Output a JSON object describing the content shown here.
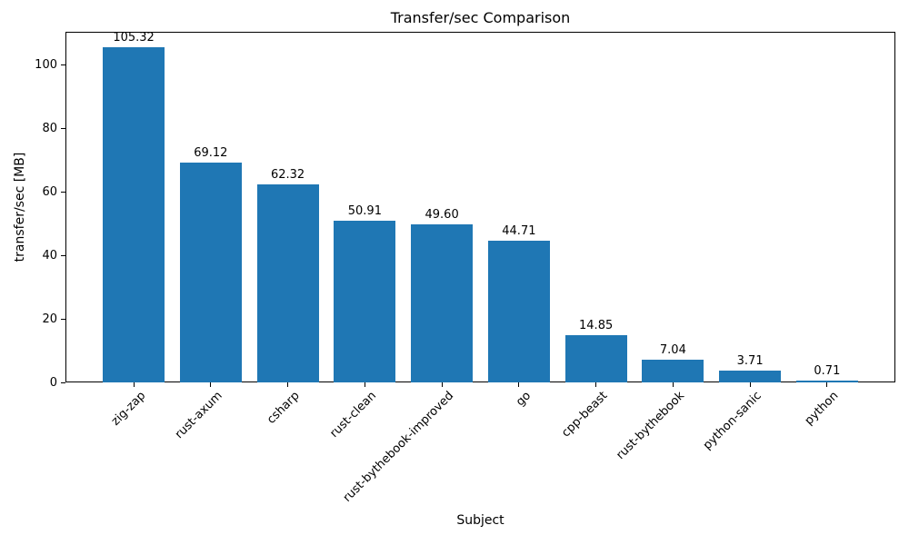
{
  "figure": {
    "background": "#ffffff"
  },
  "chart_data": {
    "type": "bar",
    "title": "Transfer/sec Comparison",
    "xlabel": "Subject",
    "ylabel": "transfer/sec [MB]",
    "categories": [
      "zig-zap",
      "rust-axum",
      "csharp",
      "rust-clean",
      "rust-bythebook-improved",
      "go",
      "cpp-beast",
      "rust-bythebook",
      "python-sanic",
      "python"
    ],
    "values": [
      105.32,
      69.12,
      62.32,
      50.91,
      49.6,
      44.71,
      14.85,
      7.04,
      3.71,
      0.71
    ],
    "bar_labels": [
      "105.32",
      "69.12",
      "62.32",
      "50.91",
      "49.60",
      "44.71",
      "14.85",
      "7.04",
      "3.71",
      "0.71"
    ],
    "yticks": [
      0,
      20,
      40,
      60,
      80,
      100
    ],
    "ylim": [
      0,
      110.3
    ],
    "bar_color": "#1f77b4",
    "text_color": "#000000",
    "spine_color": "#000000",
    "grid": false,
    "legend": null,
    "x_tick_label_rotation_deg": 45
  }
}
